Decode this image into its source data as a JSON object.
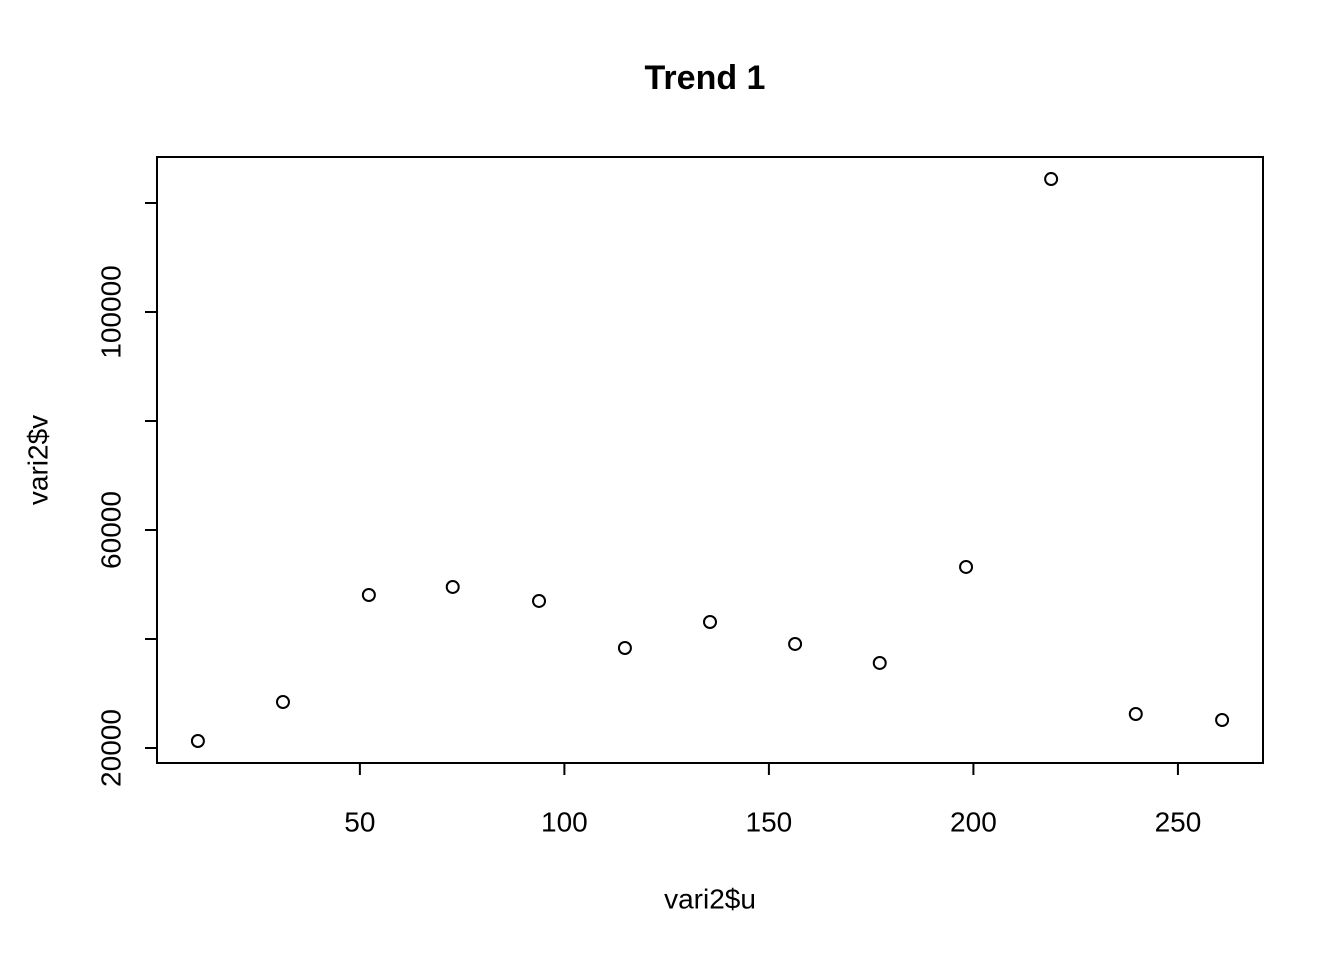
{
  "chart_data": {
    "type": "scatter",
    "title": "Trend 1",
    "x_label": "vari2$u",
    "y_label": "vari2$v",
    "x": [
      10.4,
      31.2,
      52.2,
      72.7,
      93.8,
      114.8,
      135.6,
      156.4,
      177.1,
      198.2,
      219.0,
      239.7,
      260.8
    ],
    "values": [
      21285,
      28440,
      48075,
      49545,
      46975,
      38350,
      43120,
      39085,
      35600,
      53215,
      124400,
      26240,
      25140
    ],
    "color": "#000000",
    "xlim": [
      0.4,
      270.8
    ],
    "xticks": [
      50,
      100,
      150,
      200,
      250
    ],
    "ylim": [
      17248,
      128440
    ],
    "yticks": [
      20000,
      60000,
      100000
    ],
    "yminor_ticks": [
      40000,
      80000,
      120000
    ],
    "grid": false
  }
}
